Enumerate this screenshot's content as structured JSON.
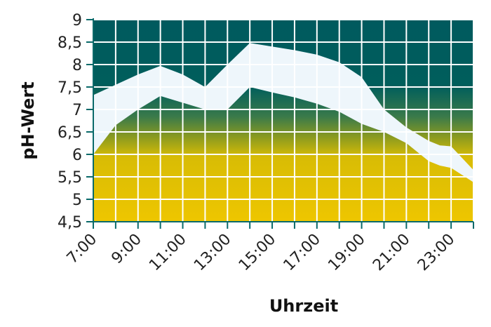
{
  "chart_data": {
    "type": "area",
    "xlabel": "Uhrzeit",
    "ylabel": "pH-Wert",
    "ylim": [
      4.5,
      9
    ],
    "xlim": [
      "7:00",
      "24:00"
    ],
    "y_ticks": [
      "4,5",
      "5",
      "5,5",
      "6",
      "6,5",
      "7",
      "7,5",
      "8",
      "8,5",
      "9"
    ],
    "x_tick_labels": [
      "7:00",
      "9:00",
      "11:00",
      "13:00",
      "15:00",
      "17:00",
      "19:00",
      "21:00",
      "23:00"
    ],
    "grid": true,
    "band": {
      "x": [
        "7:00",
        "8:00",
        "9:00",
        "10:00",
        "11:00",
        "12:00",
        "13:00",
        "14:00",
        "15:00",
        "16:00",
        "17:00",
        "18:00",
        "19:00",
        "20:00",
        "21:00",
        "22:00",
        "22:30",
        "23:00",
        "24:00"
      ],
      "upper": [
        7.32,
        7.55,
        7.78,
        7.97,
        7.78,
        7.5,
        8.0,
        8.48,
        8.4,
        8.32,
        8.22,
        8.05,
        7.72,
        7.0,
        6.6,
        6.3,
        6.2,
        6.18,
        5.65
      ],
      "lower": [
        6.0,
        6.65,
        7.0,
        7.3,
        7.15,
        7.0,
        7.0,
        7.5,
        7.38,
        7.27,
        7.13,
        6.95,
        6.68,
        6.5,
        6.25,
        5.85,
        5.75,
        5.7,
        5.38
      ]
    },
    "colors": {
      "top": "#005a5a",
      "middle": "#2e7d4e",
      "bottom": "#e8c200",
      "band_fill": "#eef6fb",
      "grid": "#ffffff"
    }
  }
}
